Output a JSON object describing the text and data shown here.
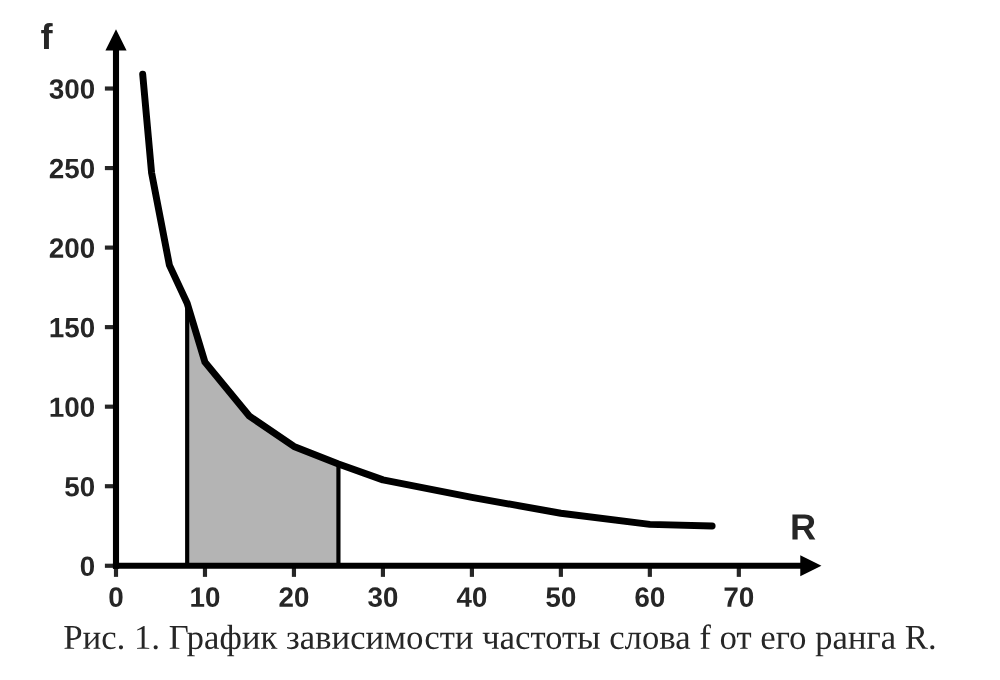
{
  "chart_data": {
    "type": "line",
    "xlabel": "R",
    "ylabel": "f",
    "annotations": [
      "Рис. 1. График зависимости частоты слова f от его ранга R."
    ],
    "xlim": [
      0,
      78
    ],
    "ylim": [
      0,
      330
    ],
    "xticks": [
      0,
      10,
      20,
      30,
      40,
      50,
      60,
      70
    ],
    "yticks": [
      0,
      50,
      100,
      150,
      200,
      250,
      300
    ],
    "grid": false,
    "legend": false,
    "marker": "none",
    "line_style": "solid",
    "series": [
      {
        "type": "area",
        "color": "#b4b4b4",
        "x": [
          8,
          10,
          15,
          20,
          25
        ],
        "values": [
          165,
          128,
          94,
          75,
          64
        ]
      },
      {
        "color": "#000000",
        "x": [
          3,
          4,
          5,
          6,
          8,
          10,
          15,
          20,
          25,
          30,
          40,
          50,
          60,
          67
        ],
        "values": [
          309,
          247,
          218,
          189,
          165,
          128,
          94,
          75,
          64,
          54,
          43,
          33,
          26,
          25
        ]
      }
    ]
  }
}
